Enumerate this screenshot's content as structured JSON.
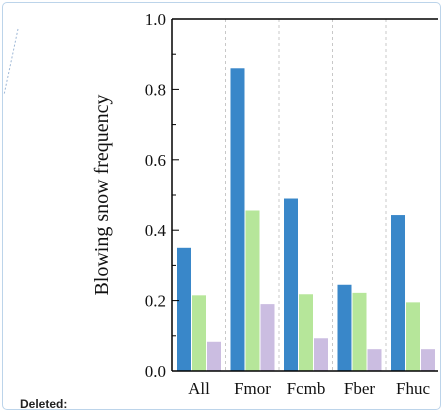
{
  "chart_data": {
    "type": "bar",
    "categories": [
      "All",
      "Fmor",
      "Fcmb",
      "Fber",
      "Fhuc"
    ],
    "category_labels_visible": [
      "All",
      "Fmor",
      "Fcmb",
      "Fber",
      "Fhuс"
    ],
    "series": [
      {
        "color": "#3987c9",
        "values": [
          0.35,
          0.86,
          0.49,
          0.245,
          0.443
        ]
      },
      {
        "color": "#b6e69a",
        "values": [
          0.215,
          0.456,
          0.218,
          0.222,
          0.195
        ]
      },
      {
        "color": "#cbbde1",
        "values": [
          0.083,
          0.19,
          0.093,
          0.062,
          0.062
        ]
      }
    ],
    "xlabel": "",
    "ylabel": "Blowing snow frequency",
    "ylim": [
      0.0,
      1.0
    ],
    "yticks": [
      "0.0",
      "0.2",
      "0.4",
      "0.6",
      "0.8",
      "1.0"
    ],
    "grid": "vertical dashed separators between categories"
  },
  "annotation": {
    "label": "Deleted:"
  }
}
